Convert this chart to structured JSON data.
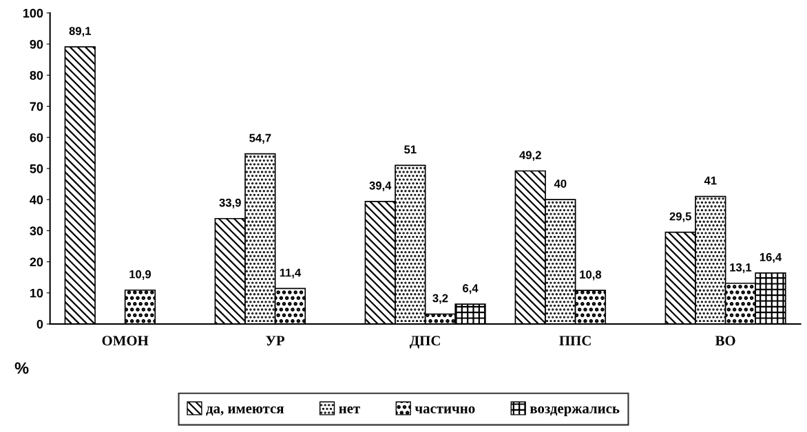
{
  "chart_data": {
    "type": "bar",
    "ylabel": "%",
    "categories": [
      "ОМОН",
      "УР",
      "ДПС",
      "ППС",
      "ВО"
    ],
    "series": [
      {
        "name": "да, имеются",
        "color": "#000000",
        "values": [
          89.1,
          33.9,
          39.4,
          49.2,
          29.5
        ],
        "value_labels": [
          "89,1",
          "33,9",
          "39,4",
          "49,2",
          "29,5"
        ]
      },
      {
        "name": "нет",
        "color": "#000000",
        "values": [
          null,
          54.7,
          51,
          40,
          41
        ],
        "value_labels": [
          null,
          "54,7",
          "51",
          "40",
          "41"
        ]
      },
      {
        "name": "частично",
        "color": "#000000",
        "values": [
          10.9,
          11.4,
          3.2,
          10.8,
          13.1
        ],
        "value_labels": [
          "10,9",
          "11,4",
          "3,2",
          "10,8",
          "13,1"
        ]
      },
      {
        "name": "воздержались",
        "color": "#000000",
        "values": [
          null,
          null,
          6.4,
          null,
          16.4
        ],
        "value_labels": [
          null,
          null,
          "6,4",
          null,
          "16,4"
        ]
      }
    ],
    "ylim": [
      0,
      100
    ],
    "yticks": [
      0,
      10,
      20,
      30,
      40,
      50,
      60,
      70,
      80,
      90,
      100
    ],
    "grid": false,
    "legend": "bottom"
  }
}
